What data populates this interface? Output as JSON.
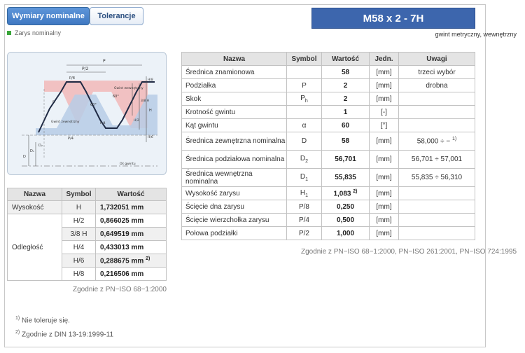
{
  "tabs": {
    "nominal": "Wymiary nominalne",
    "tolerances": "Tolerancje"
  },
  "legend": {
    "label": "Zarys nominalny",
    "color": "#3aa63a"
  },
  "header": {
    "title": "M58 x 2 - 7H",
    "subtitle": "gwint metryczny, wewnętrzny"
  },
  "drawing_labels": {
    "P": "P",
    "P2": "P/2",
    "P4": "P/4",
    "P8": "P/8",
    "angle": "60°",
    "nut_label": "Gwint wewnętrzny",
    "bolt_label": "Gwint zewnętrzny",
    "axis_label": "Oś gwintu",
    "D": "D",
    "D1": "D₁",
    "D2": "D₂",
    "H": "H",
    "H8": "H/8",
    "H4": "H/4",
    "H2": "H/2",
    "H38": "3/8 H",
    "H6": "H/6",
    "r": "R"
  },
  "left_table": {
    "headers": [
      "Nazwa",
      "Symbol",
      "Wartość"
    ],
    "height_name": "Wysokość",
    "height_symbol": "H",
    "height_value": "1,732051 mm",
    "distance_name": "Odległość",
    "rows": [
      {
        "symbol": "H/2",
        "value": "0,866025 mm"
      },
      {
        "symbol": "3/8 H",
        "value": "0,649519 mm"
      },
      {
        "symbol": "H/4",
        "value": "0,433013 mm"
      },
      {
        "symbol": "H/6",
        "value": "0,288675 mm",
        "sup": "2)"
      },
      {
        "symbol": "H/8",
        "value": "0,216506 mm"
      }
    ],
    "source": "Zgodnie z PN−ISO 68−1:2000"
  },
  "right_table": {
    "headers": [
      "Nazwa",
      "Symbol",
      "Wartość",
      "Jedn.",
      "Uwagi"
    ],
    "rows": [
      {
        "name": "Średnica znamionowa",
        "symbol": "",
        "value": "58",
        "unit": "[mm]",
        "note": "trzeci wybór"
      },
      {
        "name": "Podziałka",
        "symbol": "P",
        "value": "2",
        "unit": "[mm]",
        "note": "drobna"
      },
      {
        "name": "Skok",
        "symbol": "Ph",
        "value": "2",
        "unit": "[mm]",
        "note": ""
      },
      {
        "name": "Krotność gwintu",
        "symbol": "",
        "value": "1",
        "unit": "[-]",
        "note": ""
      },
      {
        "name": "Kąt gwintu",
        "symbol": "α",
        "value": "60",
        "unit": "[°]",
        "note": ""
      },
      {
        "name": "Średnica zewnętrzna nominalna",
        "symbol": "D",
        "value": "58",
        "unit": "[mm]",
        "note": "58,000 ÷ −",
        "note_sup": "1)"
      },
      {
        "name": "Średnica podziałowa nominalna",
        "symbol": "D2",
        "value": "56,701",
        "unit": "[mm]",
        "note": "56,701 ÷ 57,001"
      },
      {
        "name": "Średnica wewnętrzna nominalna",
        "symbol": "D1",
        "value": "55,835",
        "unit": "[mm]",
        "note": "55,835 ÷ 56,310"
      },
      {
        "name": "Wysokość zarysu",
        "symbol": "H1",
        "value": "1,083",
        "value_sup": "2)",
        "unit": "[mm]",
        "note": ""
      },
      {
        "name": "Ścięcie dna zarysu",
        "symbol": "P/8",
        "value": "0,250",
        "unit": "[mm]",
        "note": ""
      },
      {
        "name": "Ścięcie wierzchołka zarysu",
        "symbol": "P/4",
        "value": "0,500",
        "unit": "[mm]",
        "note": ""
      },
      {
        "name": "Połowa podziałki",
        "symbol": "P/2",
        "value": "1,000",
        "unit": "[mm]",
        "note": ""
      }
    ],
    "source": "Zgodnie z PN−ISO 68−1:2000, PN−ISO 261:2001, PN−ISO 724:1995"
  },
  "footnotes": [
    {
      "mark": "1)",
      "text": "Nie toleruje się."
    },
    {
      "mark": "2)",
      "text": "Zgodnie z DIN 13-19:1999-11"
    }
  ]
}
